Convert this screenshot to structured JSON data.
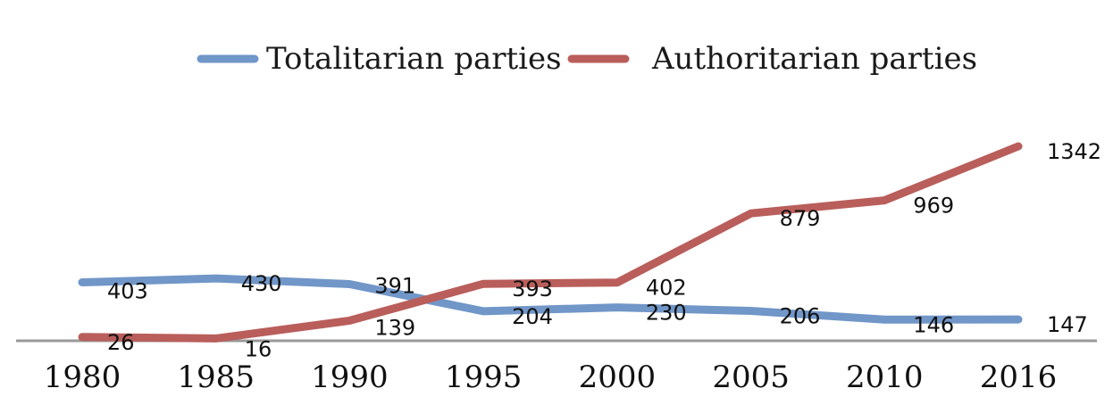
{
  "chart_data": {
    "type": "line",
    "categories": [
      "1980",
      "1985",
      "1990",
      "1995",
      "2000",
      "2005",
      "2010",
      "2016"
    ],
    "series": [
      {
        "name": "Totalitarian parties",
        "values": [
          403,
          430,
          391,
          204,
          230,
          206,
          146,
          147
        ],
        "labels": [
          "403",
          "430",
          "391",
          "204",
          "230",
          "206",
          "146",
          "147"
        ],
        "color": "#7196c8"
      },
      {
        "name": "Authoritarian parties",
        "values": [
          26,
          16,
          139,
          393,
          402,
          879,
          969,
          1342
        ],
        "labels": [
          "26",
          "16",
          "139",
          "393",
          "402",
          "879",
          "969",
          "1342"
        ],
        "color": "#b95e5b"
      }
    ],
    "ylim": [
      0,
      1342
    ],
    "grid": false,
    "legend_position": "top-center",
    "axis_color": "#999999"
  }
}
